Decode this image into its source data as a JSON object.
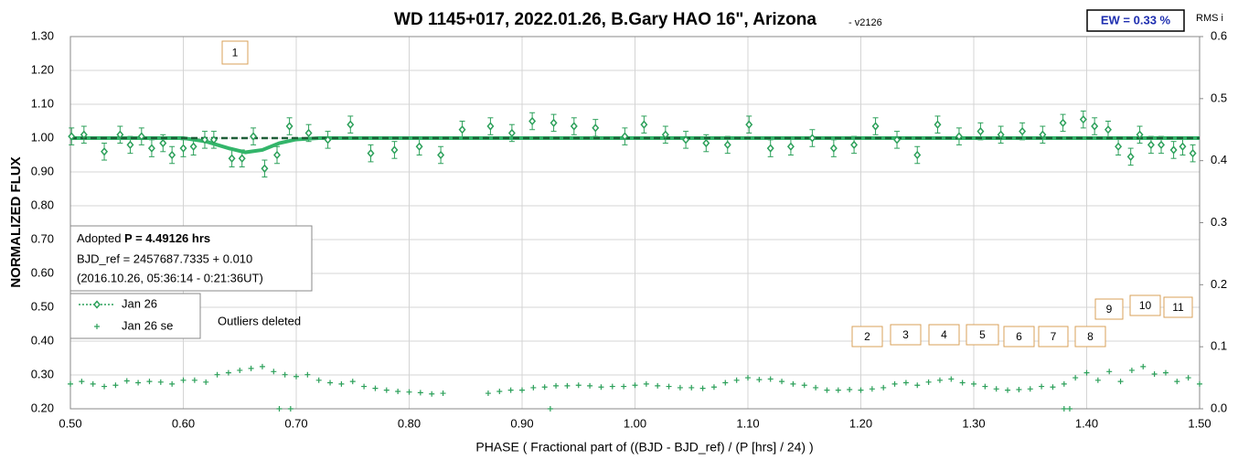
{
  "chart_data": {
    "type": "scatter",
    "title": "WD 1145+017, 2022.01.26, B.Gary HAO 16\", Arizona",
    "subtitle": "- v2126",
    "ew_label": "EW = 0.33 %",
    "y2_label": "RMS i",
    "x_label": "PHASE ( Fractional part of ((BJD - BJD_ref) / (P [hrs] / 24) )",
    "y_label": "NORMALIZED FLUX",
    "info": {
      "prefix": "Adopted ",
      "period": "P = 4.49126 hrs",
      "ref": "BJD_ref = 2457687.7335 + 0.010",
      "date": "(2016.10.26, 05:36:14 - 0:21:36UT)"
    },
    "note": "Outliers deleted",
    "boxes": [
      "1",
      "2",
      "3",
      "4",
      "5",
      "6",
      "7",
      "8",
      "9",
      "10",
      "11"
    ],
    "grid": true,
    "xlim": [
      0.5,
      1.5
    ],
    "ylim": [
      0.2,
      1.3
    ],
    "y2lim": [
      0,
      0.6
    ],
    "xticks": [
      {
        "value": 0.5,
        "label": "0.50"
      },
      {
        "value": 0.6,
        "label": "0.60"
      },
      {
        "value": 0.7,
        "label": "0.70"
      },
      {
        "value": 0.8,
        "label": "0.80"
      },
      {
        "value": 0.9,
        "label": "0.90"
      },
      {
        "value": 1.0,
        "label": "1.00"
      },
      {
        "value": 1.1,
        "label": "1.10"
      },
      {
        "value": 1.2,
        "label": "1.20"
      },
      {
        "value": 1.3,
        "label": "1.30"
      },
      {
        "value": 1.4,
        "label": "1.40"
      },
      {
        "value": 1.5,
        "label": "1.50"
      }
    ],
    "yticks": [
      {
        "value": 0.2,
        "label": "0.20"
      },
      {
        "value": 0.3,
        "label": "0.30"
      },
      {
        "value": 0.4,
        "label": "0.40"
      },
      {
        "value": 0.5,
        "label": "0.50"
      },
      {
        "value": 0.6,
        "label": "0.60"
      },
      {
        "value": 0.7,
        "label": "0.70"
      },
      {
        "value": 0.8,
        "label": "0.80"
      },
      {
        "value": 0.9,
        "label": "0.90"
      },
      {
        "value": 1.0,
        "label": "1.00"
      },
      {
        "value": 1.1,
        "label": "1.10"
      },
      {
        "value": 1.2,
        "label": "1.20"
      },
      {
        "value": 1.3,
        "label": "1.30"
      }
    ],
    "y2ticks": [
      {
        "value": 0,
        "label": "0.0"
      },
      0.1,
      0.2,
      0.3,
      0.4,
      0.5,
      0.6
    ],
    "model": {
      "color": "#33b56a",
      "x": [
        0.5,
        0.6,
        0.62,
        0.64,
        0.655,
        0.67,
        0.685,
        0.7,
        0.72,
        1.5
      ],
      "values": [
        1.0,
        1.0,
        0.99,
        0.97,
        0.958,
        0.965,
        0.985,
        0.996,
        1.0,
        1.0
      ]
    },
    "baseline": {
      "color": "#1f5e38",
      "x": [
        0.5,
        1.5
      ],
      "values": [
        1.0,
        1.0
      ]
    },
    "series": [
      {
        "name": "Jan 26",
        "color": "#2ca05a",
        "error": 0.025,
        "x": [
          0.501,
          0.512,
          0.53,
          0.544,
          0.553,
          0.563,
          0.572,
          0.582,
          0.59,
          0.6,
          0.609,
          0.619,
          0.627,
          0.643,
          0.652,
          0.662,
          0.672,
          0.683,
          0.694,
          0.711,
          0.728,
          0.748,
          0.766,
          0.787,
          0.809,
          0.828,
          0.847,
          0.872,
          0.891,
          0.909,
          0.928,
          0.946,
          0.965,
          0.991,
          1.008,
          1.027,
          1.045,
          1.063,
          1.082,
          1.101,
          1.12,
          1.138,
          1.157,
          1.176,
          1.194,
          1.213,
          1.232,
          1.25,
          1.268,
          1.287,
          1.306,
          1.324,
          1.343,
          1.361,
          1.379,
          1.397,
          1.407,
          1.419,
          1.428,
          1.439,
          1.447,
          1.457,
          1.466,
          1.477,
          1.485,
          1.494
        ],
        "values": [
          1.005,
          1.01,
          0.96,
          1.01,
          0.98,
          1.005,
          0.97,
          0.985,
          0.95,
          0.97,
          0.975,
          0.995,
          0.995,
          0.94,
          0.94,
          1.005,
          0.91,
          0.95,
          1.035,
          1.015,
          0.995,
          1.04,
          0.955,
          0.965,
          0.975,
          0.95,
          1.025,
          1.035,
          1.015,
          1.05,
          1.045,
          1.035,
          1.03,
          1.005,
          1.04,
          1.01,
          0.995,
          0.985,
          0.98,
          1.04,
          0.97,
          0.975,
          1.0,
          0.97,
          0.98,
          1.035,
          0.995,
          0.95,
          1.04,
          1.005,
          1.02,
          1.01,
          1.02,
          1.01,
          1.045,
          1.055,
          1.035,
          1.025,
          0.975,
          0.945,
          1.01,
          0.98,
          0.98,
          0.965,
          0.975,
          0.955
        ]
      },
      {
        "name": "Jan 26 se",
        "color": "#2ca05a",
        "axis": "y2",
        "x": [
          0.5,
          0.51,
          0.52,
          0.53,
          0.54,
          0.55,
          0.56,
          0.57,
          0.58,
          0.59,
          0.6,
          0.61,
          0.62,
          0.63,
          0.64,
          0.65,
          0.66,
          0.67,
          0.68,
          0.69,
          0.7,
          0.71,
          0.72,
          0.73,
          0.74,
          0.75,
          0.76,
          0.77,
          0.78,
          0.79,
          0.8,
          0.81,
          0.82,
          0.83,
          0.87,
          0.88,
          0.89,
          0.9,
          0.91,
          0.92,
          0.93,
          0.94,
          0.95,
          0.96,
          0.97,
          0.98,
          0.99,
          1.0,
          1.01,
          1.02,
          1.03,
          1.04,
          1.05,
          1.06,
          1.07,
          1.08,
          1.09,
          1.1,
          1.11,
          1.12,
          1.13,
          1.14,
          1.15,
          1.16,
          1.17,
          1.18,
          1.19,
          1.2,
          1.21,
          1.22,
          1.23,
          1.24,
          1.25,
          1.26,
          1.27,
          1.28,
          1.29,
          1.3,
          1.31,
          1.32,
          1.33,
          1.34,
          1.35,
          1.36,
          1.37,
          1.38,
          1.39,
          1.4,
          1.41,
          1.42,
          1.43,
          1.44,
          1.45,
          1.46,
          1.47,
          1.48,
          1.49,
          1.5,
          0.685,
          0.695,
          0.925,
          1.38,
          1.385
        ],
        "values": [
          0.04,
          0.044,
          0.04,
          0.036,
          0.038,
          0.045,
          0.042,
          0.044,
          0.043,
          0.04,
          0.046,
          0.046,
          0.043,
          0.055,
          0.058,
          0.062,
          0.065,
          0.068,
          0.06,
          0.055,
          0.052,
          0.055,
          0.046,
          0.042,
          0.04,
          0.044,
          0.036,
          0.033,
          0.03,
          0.028,
          0.027,
          0.026,
          0.024,
          0.025,
          0.025,
          0.028,
          0.03,
          0.03,
          0.034,
          0.035,
          0.037,
          0.037,
          0.038,
          0.037,
          0.035,
          0.036,
          0.036,
          0.038,
          0.04,
          0.037,
          0.036,
          0.034,
          0.034,
          0.033,
          0.035,
          0.042,
          0.046,
          0.05,
          0.047,
          0.048,
          0.044,
          0.04,
          0.038,
          0.034,
          0.03,
          0.03,
          0.031,
          0.03,
          0.032,
          0.034,
          0.04,
          0.042,
          0.038,
          0.043,
          0.046,
          0.048,
          0.042,
          0.04,
          0.036,
          0.032,
          0.03,
          0.031,
          0.032,
          0.036,
          0.035,
          0.04,
          0.05,
          0.058,
          0.046,
          0.06,
          0.044,
          0.062,
          0.068,
          0.056,
          0.058,
          0.044,
          0.05,
          0.04,
          0,
          0,
          0,
          0,
          0
        ]
      }
    ]
  }
}
